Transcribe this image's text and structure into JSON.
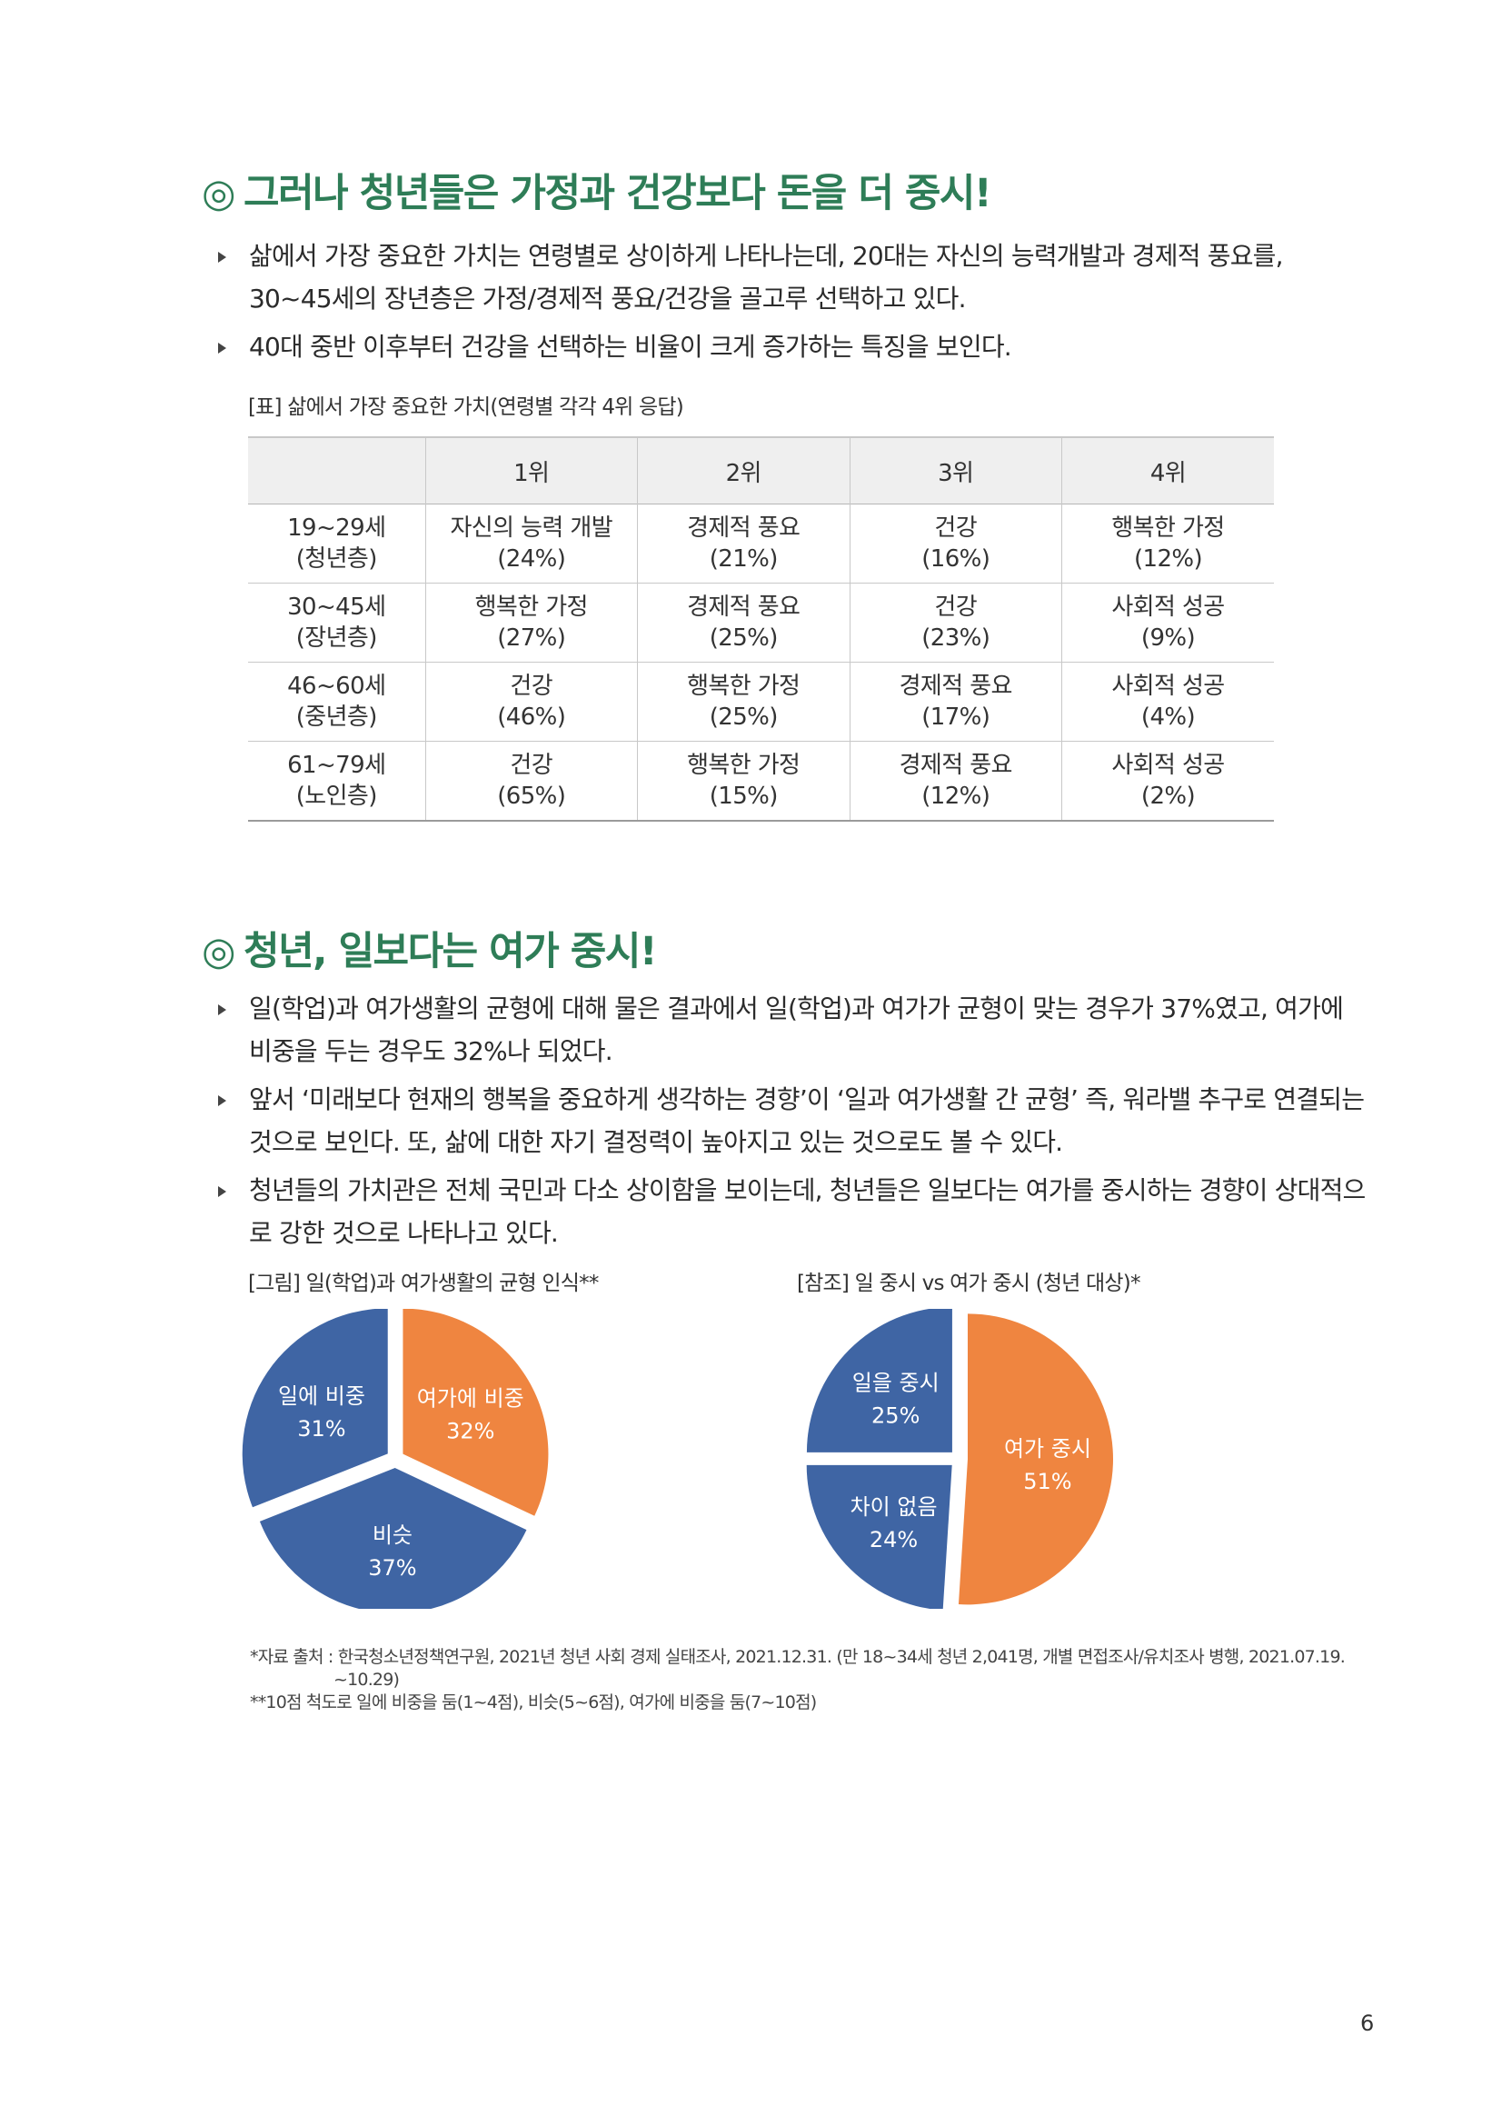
{
  "section1": {
    "title_mark": "◎",
    "title": "그러나 청년들은 가정과 건강보다 돈을 더 중시!",
    "bullets": [
      "삶에서 가장 중요한 가치는 연령별로 상이하게 나타나는데, 20대는 자신의 능력개발과 경제적 풍요를, 30~45세의 장년층은 가정/경제적 풍요/건강을 골고루 선택하고 있다.",
      "40대 중반 이후부터 건강을 선택하는 비율이 크게 증가하는 특징을 보인다."
    ],
    "table_caption": "[표] 삶에서 가장 중요한 가치(연령별 각각 4위 응답)",
    "table": {
      "headers": [
        "",
        "1위",
        "2위",
        "3위",
        "4위"
      ],
      "rows": [
        {
          "age": "19~29세",
          "group": "(청년층)",
          "cells": [
            {
              "label": "자신의 능력 개발",
              "pct": "(24%)",
              "highlight": false
            },
            {
              "label": "경제적 풍요",
              "pct": "(21%)",
              "highlight": true
            },
            {
              "label": "건강",
              "pct": "(16%)",
              "highlight": false
            },
            {
              "label": "행복한 가정",
              "pct": "(12%)",
              "highlight": false
            }
          ]
        },
        {
          "age": "30~45세",
          "group": "(장년층)",
          "cells": [
            {
              "label": "행복한 가정",
              "pct": "(27%)",
              "highlight": false
            },
            {
              "label": "경제적 풍요",
              "pct": "(25%)",
              "highlight": true
            },
            {
              "label": "건강",
              "pct": "(23%)",
              "highlight": false
            },
            {
              "label": "사회적 성공",
              "pct": "(9%)",
              "highlight": false
            }
          ]
        },
        {
          "age": "46~60세",
          "group": "(중년층)",
          "cells": [
            {
              "label": "건강",
              "pct": "(46%)",
              "highlight": false
            },
            {
              "label": "행복한 가정",
              "pct": "(25%)",
              "highlight": false
            },
            {
              "label": "경제적 풍요",
              "pct": "(17%)",
              "highlight": false
            },
            {
              "label": "사회적 성공",
              "pct": "(4%)",
              "highlight": false
            }
          ]
        },
        {
          "age": "61~79세",
          "group": "(노인층)",
          "cells": [
            {
              "label": "건강",
              "pct": "(65%)",
              "highlight": false
            },
            {
              "label": "행복한 가정",
              "pct": "(15%)",
              "highlight": false
            },
            {
              "label": "경제적 풍요",
              "pct": "(12%)",
              "highlight": false
            },
            {
              "label": "사회적 성공",
              "pct": "(2%)",
              "highlight": false
            }
          ]
        }
      ]
    }
  },
  "section2": {
    "title_mark": "◎",
    "title": "청년, 일보다는 여가 중시!",
    "bullets": [
      "일(학업)과 여가생활의 균형에 대해 물은 결과에서 일(학업)과 여가가 균형이 맞는 경우가 37%였고, 여가에 비중을 두는 경우도 32%나 되었다.",
      "앞서 ‘미래보다 현재의 행복을 중요하게 생각하는 경향’이 ‘일과 여가생활 간 균형’ 즉, 워라밸 추구로 연결되는 것으로 보인다. 또, 삶에 대한 자기 결정력이 높아지고 있는 것으로도 볼 수 있다.",
      "청년들의 가치관은 전체 국민과 다소 상이함을 보이는데, 청년들은 일보다는 여가를 중시하는 경향이 상대적으로 강한 것으로 나타나고 있다."
    ]
  },
  "colors": {
    "title_green": "#2e7d57",
    "pie_blue": "#3f65a4",
    "pie_orange": "#ef8540",
    "highlight_red": "#d9372a"
  },
  "chart_data": [
    {
      "type": "pie",
      "title": "[그림] 일(학업)과 여가생활의 균형 인식**",
      "slices": [
        {
          "label": "여가에 비중",
          "value": 32,
          "display": "32%",
          "color": "#ef8540"
        },
        {
          "label": "비슷",
          "value": 37,
          "display": "37%",
          "color": "#3f65a4"
        },
        {
          "label": "일에 비중",
          "value": 31,
          "display": "31%",
          "color": "#3f65a4"
        }
      ]
    },
    {
      "type": "pie",
      "title": "[참조] 일 중시 vs 여가 중시 (청년 대상)*",
      "slices": [
        {
          "label": "여가 중시",
          "value": 51,
          "display": "51%",
          "color": "#ef8540"
        },
        {
          "label": "차이 없음",
          "value": 24,
          "display": "24%",
          "color": "#3f65a4"
        },
        {
          "label": "일을 중시",
          "value": 25,
          "display": "25%",
          "color": "#3f65a4"
        }
      ]
    }
  ],
  "notes": {
    "source_line1": "*자료 출처 : 한국청소년정책연구원, 2021년 청년 사회 경제 실태조사, 2021.12.31. (만 18~34세 청년 2,041명, 개별 면접조사/유치조사 병행, 2021.07.19.",
    "source_line2": "~10.29)",
    "scale_note": "**10점 척도로 일에 비중을 둠(1~4점), 비슷(5~6점), 여가에 비중을 둠(7~10점)"
  },
  "page_number": "6"
}
